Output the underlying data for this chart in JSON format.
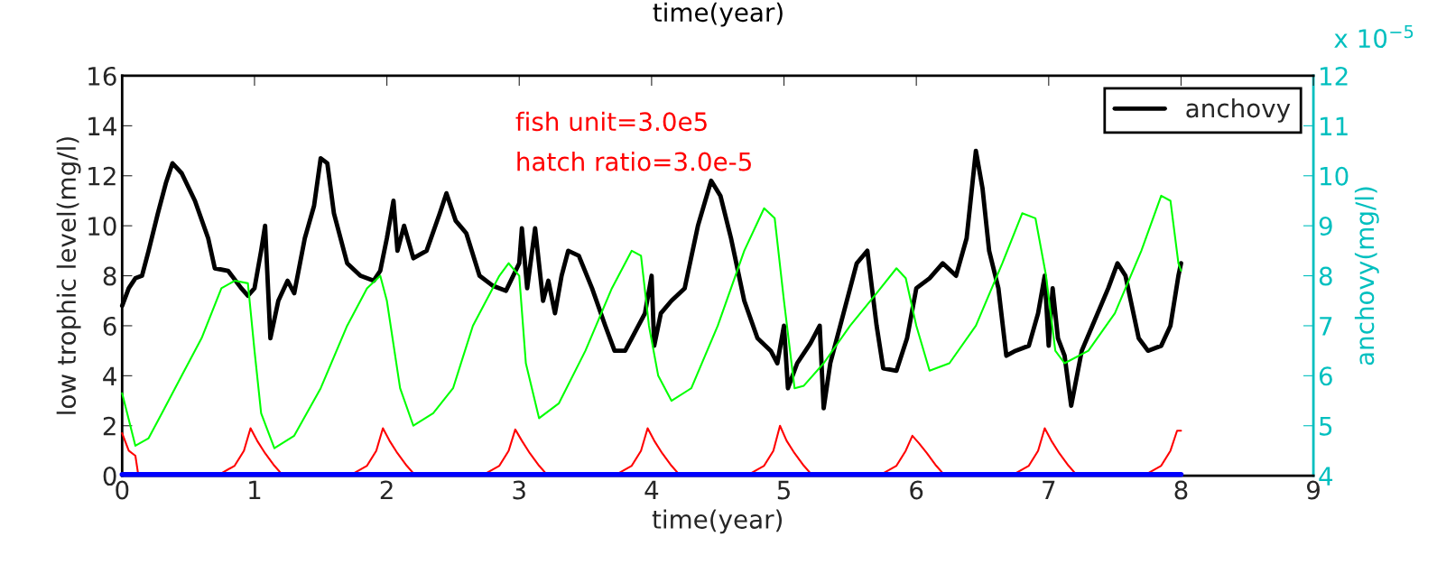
{
  "chart_data": {
    "type": "line",
    "xlabel": "time(year)",
    "ylabel": "low trophic level(mg/l)",
    "y2label": "anchovy(mg/l)",
    "xlim": [
      0,
      9
    ],
    "xticks": [
      0,
      1,
      2,
      3,
      4,
      5,
      6,
      7,
      8,
      9
    ],
    "ylim": [
      0,
      16
    ],
    "yticks": [
      0,
      2,
      4,
      6,
      8,
      10,
      12,
      14,
      16
    ],
    "y2lim": [
      4,
      12
    ],
    "y2ticks": [
      4,
      5,
      6,
      7,
      8,
      9,
      10,
      11,
      12
    ],
    "legend": "top right",
    "grid": false,
    "annotations": [
      "fish unit=3.0e5",
      "hatch ratio=3.0e-5",
      "x 10$^{−5}$",
      "time(year)"
    ],
    "series": [
      {
        "name": "anchovy",
        "color": "#000000",
        "axis": "y2",
        "x": [
          0,
          0.05,
          0.1,
          0.15,
          0.2,
          0.27,
          0.33,
          0.38,
          0.45,
          0.55,
          0.65,
          0.7,
          0.8,
          0.9,
          0.95,
          1.0,
          1.05,
          1.08,
          1.12,
          1.18,
          1.25,
          1.3,
          1.38,
          1.45,
          1.5,
          1.55,
          1.6,
          1.7,
          1.8,
          1.9,
          1.95,
          2.0,
          2.05,
          2.08,
          2.13,
          2.2,
          2.3,
          2.4,
          2.45,
          2.52,
          2.6,
          2.7,
          2.8,
          2.9,
          3.0,
          3.02,
          3.06,
          3.12,
          3.18,
          3.22,
          3.27,
          3.32,
          3.37,
          3.45,
          3.55,
          3.65,
          3.72,
          3.8,
          3.85,
          3.95,
          4.0,
          4.02,
          4.07,
          4.15,
          4.25,
          4.35,
          4.45,
          4.52,
          4.6,
          4.7,
          4.8,
          4.9,
          4.95,
          5.0,
          5.03,
          5.1,
          5.2,
          5.27,
          5.3,
          5.35,
          5.45,
          5.55,
          5.63,
          5.7,
          5.75,
          5.85,
          5.93,
          6.0,
          6.1,
          6.2,
          6.3,
          6.38,
          6.45,
          6.5,
          6.55,
          6.62,
          6.68,
          6.75,
          6.85,
          6.92,
          6.97,
          7.0,
          7.03,
          7.07,
          7.12,
          7.17,
          7.25,
          7.33,
          7.45,
          7.52,
          7.58,
          7.68,
          7.75,
          7.85,
          7.92,
          7.98,
          8.0
        ],
        "values": [
          7.4,
          7.75,
          7.95,
          8.0,
          8.5,
          9.25,
          9.85,
          10.25,
          10.05,
          9.5,
          8.75,
          8.15,
          8.1,
          7.75,
          7.6,
          7.75,
          8.5,
          9.0,
          6.75,
          7.5,
          7.9,
          7.65,
          8.75,
          9.4,
          10.35,
          10.25,
          9.25,
          8.25,
          8.0,
          7.9,
          8.1,
          8.75,
          9.5,
          8.5,
          9.0,
          8.35,
          8.5,
          9.25,
          9.65,
          9.1,
          8.85,
          8.0,
          7.8,
          7.7,
          8.25,
          8.95,
          7.75,
          8.95,
          7.5,
          7.9,
          7.25,
          8.0,
          8.5,
          8.4,
          7.75,
          7.0,
          6.5,
          6.5,
          6.75,
          7.25,
          8.0,
          6.6,
          7.25,
          7.5,
          7.75,
          9.0,
          9.9,
          9.6,
          8.75,
          7.5,
          6.75,
          6.5,
          6.25,
          7.0,
          5.75,
          6.25,
          6.65,
          7.0,
          5.35,
          6.25,
          7.25,
          8.25,
          8.5,
          7.0,
          6.15,
          6.1,
          6.75,
          7.75,
          7.95,
          8.25,
          8.0,
          8.75,
          10.5,
          9.75,
          8.5,
          7.75,
          6.4,
          6.5,
          6.6,
          7.25,
          8.0,
          6.6,
          7.75,
          6.75,
          6.4,
          5.4,
          6.5,
          7.0,
          7.75,
          8.25,
          8.0,
          6.75,
          6.5,
          6.6,
          7.0,
          8.0,
          8.25
        ]
      },
      {
        "color": "#00ff00",
        "x": [
          0,
          0.1,
          0.2,
          0.3,
          0.45,
          0.6,
          0.75,
          0.85,
          0.95,
          1.0,
          1.05,
          1.15,
          1.3,
          1.5,
          1.7,
          1.85,
          1.95,
          2.0,
          2.1,
          2.2,
          2.35,
          2.5,
          2.65,
          2.85,
          2.92,
          3.0,
          3.05,
          3.15,
          3.3,
          3.5,
          3.7,
          3.85,
          3.92,
          3.98,
          4.05,
          4.15,
          4.3,
          4.5,
          4.7,
          4.85,
          4.93,
          5.0,
          5.08,
          5.15,
          5.3,
          5.5,
          5.7,
          5.85,
          5.92,
          6.0,
          6.1,
          6.25,
          6.45,
          6.65,
          6.8,
          6.9,
          6.98,
          7.05,
          7.12,
          7.3,
          7.5,
          7.7,
          7.85,
          7.92,
          7.98,
          8.0
        ],
        "values": [
          3.3,
          1.2,
          1.5,
          2.5,
          4.0,
          5.5,
          7.5,
          7.8,
          7.7,
          5.0,
          2.5,
          1.1,
          1.6,
          3.5,
          6.0,
          7.5,
          8.0,
          7.0,
          3.5,
          2.0,
          2.5,
          3.5,
          6.0,
          8.0,
          8.5,
          8.0,
          4.5,
          2.3,
          2.9,
          5.0,
          7.5,
          9.0,
          8.8,
          6.0,
          4.0,
          3.0,
          3.5,
          6.0,
          9.0,
          10.7,
          10.3,
          7.0,
          3.5,
          3.6,
          4.5,
          6.0,
          7.3,
          8.3,
          7.9,
          6.0,
          4.2,
          4.5,
          6.0,
          8.5,
          10.5,
          10.3,
          8.0,
          5.0,
          4.5,
          5.0,
          6.5,
          9.0,
          11.2,
          11.0,
          8.5,
          8.2
        ]
      },
      {
        "color": "#ff0000",
        "x": [
          0,
          0.05,
          0.1,
          0.12,
          0.75,
          0.85,
          0.92,
          0.97,
          1.02,
          1.08,
          1.15,
          1.2,
          1.75,
          1.85,
          1.92,
          1.97,
          2.02,
          2.08,
          2.15,
          2.2,
          2.75,
          2.85,
          2.92,
          2.97,
          3.02,
          3.08,
          3.15,
          3.2,
          3.75,
          3.85,
          3.92,
          3.97,
          4.02,
          4.08,
          4.15,
          4.2,
          4.75,
          4.85,
          4.92,
          4.97,
          5.02,
          5.08,
          5.15,
          5.2,
          5.75,
          5.85,
          5.92,
          5.97,
          6.02,
          6.08,
          6.15,
          6.2,
          6.75,
          6.85,
          6.92,
          6.97,
          7.02,
          7.08,
          7.15,
          7.2,
          7.75,
          7.85,
          7.92,
          7.97,
          8.0
        ],
        "values": [
          1.7,
          1.0,
          0.8,
          0.1,
          0.1,
          0.4,
          1.0,
          1.9,
          1.4,
          0.9,
          0.4,
          0.1,
          0.1,
          0.4,
          1.0,
          1.9,
          1.4,
          0.9,
          0.4,
          0.1,
          0.1,
          0.4,
          1.0,
          1.85,
          1.4,
          0.9,
          0.4,
          0.1,
          0.1,
          0.4,
          1.0,
          1.9,
          1.4,
          0.9,
          0.4,
          0.1,
          0.1,
          0.4,
          1.0,
          2.0,
          1.4,
          0.9,
          0.4,
          0.1,
          0.1,
          0.4,
          1.0,
          1.6,
          1.3,
          0.9,
          0.4,
          0.1,
          0.1,
          0.4,
          1.0,
          1.9,
          1.4,
          0.9,
          0.4,
          0.1,
          0.1,
          0.4,
          1.0,
          1.8,
          1.8
        ]
      },
      {
        "color": "#0000ff",
        "x": [
          0,
          8
        ],
        "values": [
          0.05,
          0.05
        ]
      }
    ]
  }
}
